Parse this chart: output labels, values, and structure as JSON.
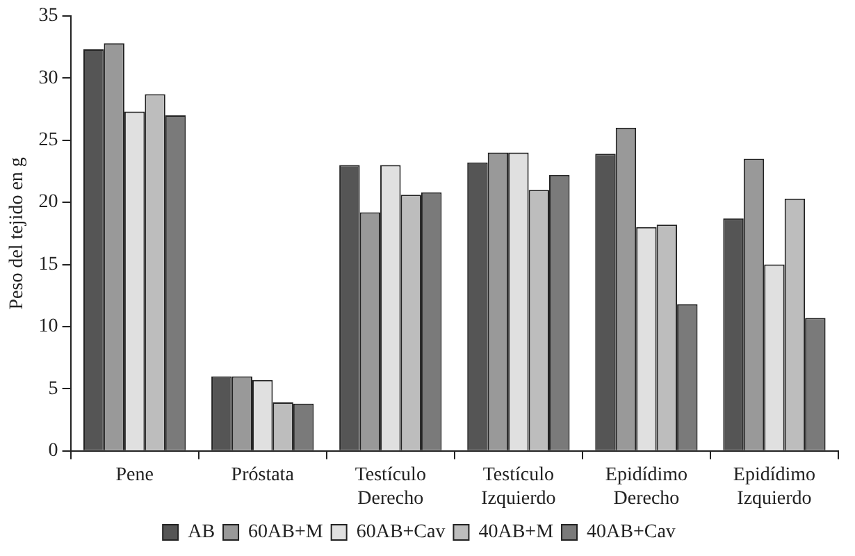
{
  "chart_data": {
    "type": "bar",
    "ylabel": "Peso del tejido en g",
    "categories": [
      "Pene",
      "Próstata",
      "Testículo Derecho",
      "Testículo Izquierdo",
      "Epidídimo Derecho",
      "Epidídimo Izquierdo"
    ],
    "series": [
      {
        "name": "AB",
        "color": "#555555",
        "values": [
          32.3,
          6.0,
          23.0,
          23.2,
          23.9,
          18.7
        ]
      },
      {
        "name": "60AB+M",
        "color": "#999999",
        "values": [
          32.8,
          6.0,
          19.2,
          24.0,
          26.0,
          23.5
        ]
      },
      {
        "name": "60AB+Cav",
        "color": "#e0e0e0",
        "values": [
          27.3,
          5.7,
          23.0,
          24.0,
          18.0,
          15.0
        ]
      },
      {
        "name": "40AB+M",
        "color": "#bdbdbd",
        "values": [
          28.7,
          3.9,
          20.6,
          21.0,
          18.2,
          20.3
        ]
      },
      {
        "name": "40AB+Cav",
        "color": "#7a7a7a",
        "values": [
          27.0,
          3.8,
          20.8,
          22.2,
          11.8,
          10.7
        ]
      }
    ],
    "ylim": [
      0,
      35
    ],
    "yticks": [
      0,
      5,
      10,
      15,
      20,
      25,
      30,
      35
    ],
    "grid": false,
    "legend": "bottom"
  }
}
